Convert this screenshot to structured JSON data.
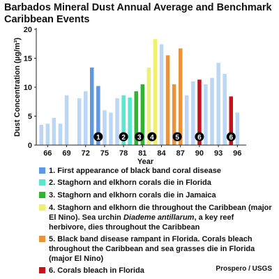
{
  "title": "Barbados Mineral Dust Annual Average and Benchmark Caribbean Events",
  "credit": "Prospero / USGS",
  "chart_data": {
    "type": "bar",
    "ylabel": "Dust Concentration (µg/m³)",
    "xlabel": "Year",
    "ylim": [
      0,
      20
    ],
    "yticks": [
      0,
      5,
      10,
      15,
      20
    ],
    "xticks": [
      "66",
      "69",
      "72",
      "75",
      "78",
      "81",
      "84",
      "87",
      "90",
      "93",
      "96"
    ],
    "grid": false,
    "years": [
      65,
      66,
      67,
      68,
      69,
      71,
      72,
      73,
      74,
      75,
      76,
      77,
      78,
      79,
      80,
      81,
      82,
      83,
      84,
      85,
      86,
      87,
      88,
      89,
      90,
      91,
      92,
      93,
      94,
      95,
      96
    ],
    "values": [
      3.5,
      3.7,
      4.7,
      3.7,
      8.6,
      8.1,
      9.3,
      13.4,
      10.2,
      6.0,
      5.6,
      8.1,
      8.6,
      8.2,
      9.3,
      10.5,
      13.4,
      18.3,
      17.4,
      15.5,
      10.5,
      16.7,
      8.6,
      11.0,
      11.3,
      10.5,
      11.6,
      14.2,
      12.3,
      8.4,
      5.6
    ],
    "categories": [
      "base",
      "base",
      "base",
      "base",
      "base",
      "base",
      "base",
      "e1",
      "e1",
      "base",
      "base",
      "base",
      "e2",
      "e2",
      "e3",
      "e3",
      "e4",
      "e4",
      "base",
      "e5",
      "e5",
      "e5",
      "base",
      "base",
      "e6",
      "base",
      "base",
      "base",
      "base",
      "e6",
      "base"
    ],
    "markers": [
      {
        "x": 74,
        "label": "1"
      },
      {
        "x": 78,
        "label": "2"
      },
      {
        "x": 80.5,
        "label": "3"
      },
      {
        "x": 82.5,
        "label": "4"
      },
      {
        "x": 86.5,
        "label": "5"
      },
      {
        "x": 90,
        "label": "6"
      },
      {
        "x": 95,
        "label": "6"
      }
    ],
    "colors": {
      "base": "#bcd6f5",
      "e1": "#5d98e0",
      "e2": "#5ae7cf",
      "e3": "#2fb52f",
      "e4": "#f0f070",
      "e5": "#e8943c",
      "e6": "#c8101a"
    }
  },
  "legend": [
    {
      "key": "e1",
      "text": "1. First appearance of black band coral disease"
    },
    {
      "key": "e2",
      "text": "2. Staghorn and elkhorn corals die in Florida"
    },
    {
      "key": "e3",
      "text": "3. Staghorn and elkhorn corals die in Jamaica"
    },
    {
      "key": "e4",
      "text": "4. Staghorn and elkhorn die throughout the Caribbean (major El Nino). Sea urchin <i>Diademe antillarum</i>, a key reef herbivore, dies throughout the Caribbean"
    },
    {
      "key": "e5",
      "text": "5. Black band disease rampant in Florida. Corals bleach throughout the Caribbean and sea grasses die in Florida (major El Nino)"
    },
    {
      "key": "e6",
      "text": "6. Corals bleach in Florida"
    }
  ]
}
